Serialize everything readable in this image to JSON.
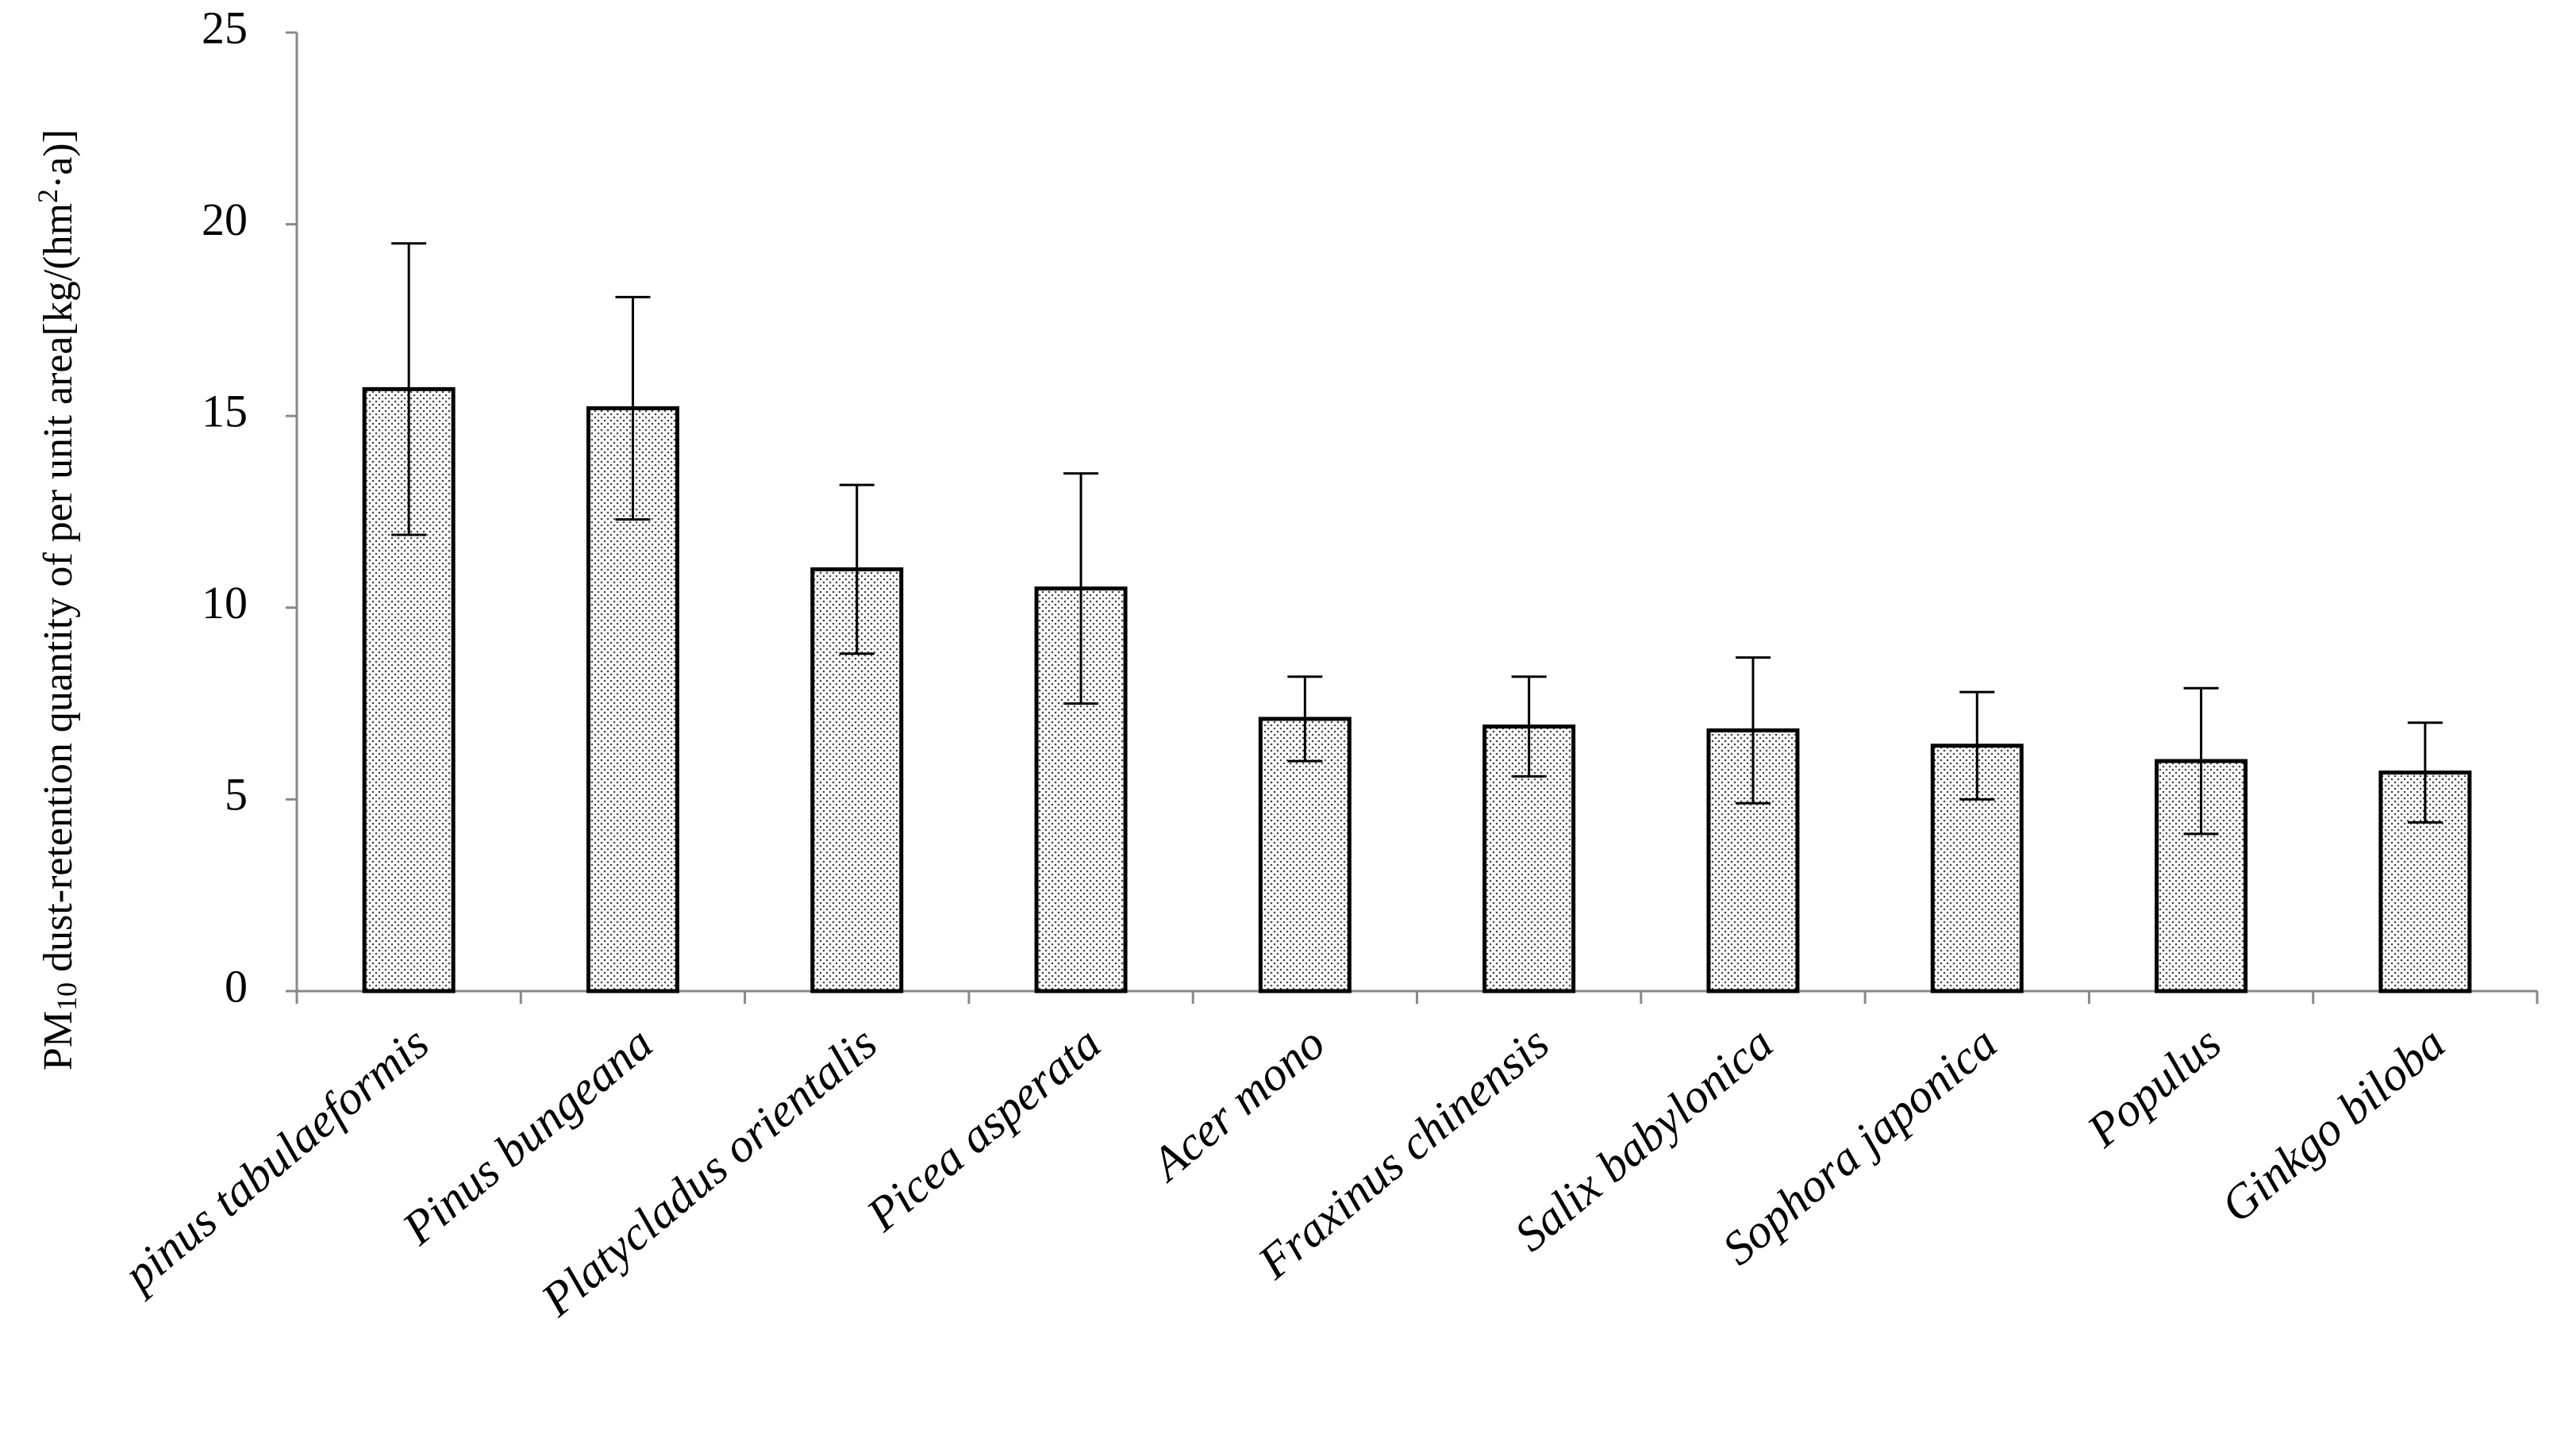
{
  "chart_data": {
    "type": "bar",
    "y_label": [
      "PM",
      "10",
      " dust-retention quantity of per unit area[kg/(hm",
      "2",
      "·a)]"
    ],
    "categories": [
      "pinus tabulaeformis",
      "Pinus bungeana",
      "Platycladus orientalis",
      "Picea asperata",
      "Acer mono",
      "Fraxinus chinensis",
      "Salix babylonica",
      "Sophora japonica",
      "Populus",
      "Ginkgo biloba"
    ],
    "values": [
      15.7,
      15.2,
      11.0,
      10.5,
      7.1,
      6.9,
      6.8,
      6.4,
      6.0,
      5.7
    ],
    "errors": [
      3.8,
      2.9,
      2.2,
      3.0,
      1.1,
      1.3,
      1.9,
      1.4,
      1.9,
      1.3
    ],
    "color": "#ffffff",
    "ylim": [
      0,
      25
    ],
    "yticks": [
      0,
      5,
      10,
      15,
      20,
      25
    ],
    "grid": false
  }
}
